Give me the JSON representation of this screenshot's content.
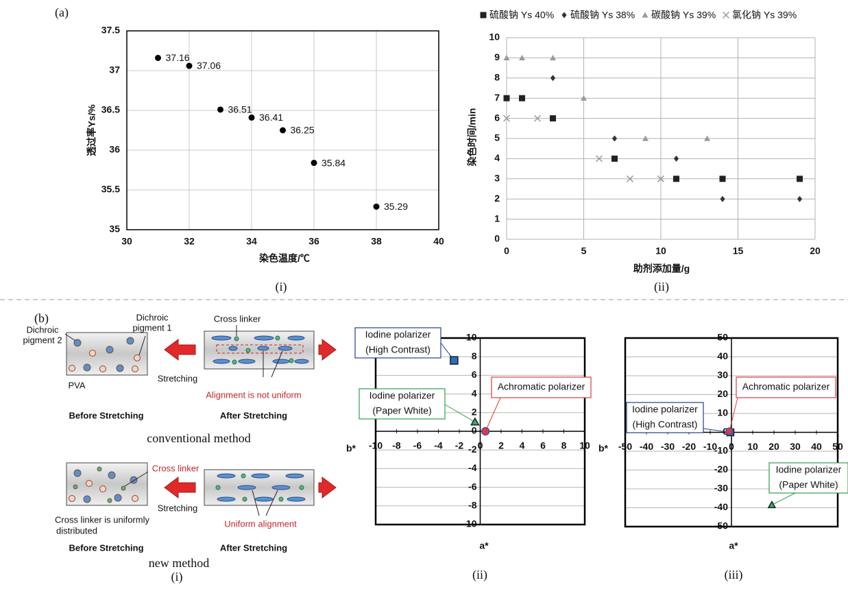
{
  "figure_labels": {
    "a": "(a)",
    "b": "(b)"
  },
  "chart_data": [
    {
      "type": "scatter",
      "panel_label": "(i)",
      "xlabel": "染色温度/℃",
      "ylabel": "透过率Ys/%",
      "x": [
        31,
        32,
        33,
        34,
        35,
        36,
        38
      ],
      "values": [
        37.16,
        37.06,
        36.51,
        36.41,
        36.25,
        35.84,
        35.29
      ],
      "data_labels": true,
      "marker": "circle",
      "color": "#000000",
      "xlim": [
        30,
        40
      ],
      "xticks": [
        30,
        32,
        34,
        36,
        38,
        40
      ],
      "ylim": [
        35,
        37.5
      ],
      "yticks": [
        35,
        35.5,
        36,
        36.5,
        37,
        37.5
      ],
      "grid": true,
      "frame": true
    },
    {
      "type": "scatter",
      "panel_label": "(ii)",
      "xlabel": "助剂添加量/g",
      "ylabel": "染色时间/min",
      "legend": "top",
      "series": [
        {
          "name": "硫酸钠 Ys 40%",
          "marker": "square",
          "color": "#222222",
          "x": [
            0,
            1,
            3,
            7,
            11,
            14,
            19
          ],
          "values": [
            7,
            7,
            6,
            4,
            3,
            3,
            3
          ]
        },
        {
          "name": "硫酸钠 Ys 38%",
          "marker": "diamond",
          "color": "#333333",
          "x": [
            3,
            7,
            11,
            14,
            19
          ],
          "values": [
            8,
            5,
            4,
            2,
            2
          ]
        },
        {
          "name": "碳酸钠 Ys 39%",
          "marker": "triangle",
          "color": "#9a9a9a",
          "x": [
            0,
            1,
            3,
            5,
            9,
            13
          ],
          "values": [
            9,
            9,
            9,
            7,
            5,
            5
          ]
        },
        {
          "name": "氯化钠 Ys 39%",
          "marker": "x",
          "color": "#9a9a9a",
          "x": [
            0,
            2,
            6,
            8,
            10
          ],
          "values": [
            6,
            6,
            4,
            3,
            3
          ]
        }
      ],
      "xlim": [
        0,
        20
      ],
      "xticks": [
        0,
        5,
        10,
        15,
        20
      ],
      "ylim": [
        0,
        10
      ],
      "yticks": [
        0,
        1,
        2,
        3,
        4,
        5,
        6,
        7,
        8,
        9,
        10
      ],
      "grid": true,
      "frame": false
    },
    {
      "type": "scatter",
      "panel_label": "(ii)",
      "xlabel": "a*",
      "ylabel": "b*",
      "axes_through_origin": true,
      "series": [
        {
          "label": [
            "Iodine polarizer",
            "(High Contrast)"
          ],
          "marker": "square",
          "color": "#2f6db3",
          "text_color": "#1f3f8f",
          "x": [
            -2.5
          ],
          "values": [
            7.6
          ]
        },
        {
          "label": [
            "Achromatic polarizer"
          ],
          "marker": "circle",
          "color": "#e03a3a",
          "text_color": "#e03a3a",
          "x": [
            0.5
          ],
          "values": [
            0
          ]
        },
        {
          "label": [
            "Iodine polarizer",
            "(Paper White)"
          ],
          "marker": "triangle",
          "color": "#3fae4f",
          "text_color": "#2e9e48",
          "x": [
            -0.5
          ],
          "values": [
            1
          ]
        }
      ],
      "xlim": [
        -10,
        10
      ],
      "xticks": [
        -10,
        -8,
        -6,
        -4,
        -2,
        0,
        2,
        4,
        6,
        8,
        10
      ],
      "ylim": [
        -10,
        10
      ],
      "yticks": [
        -10,
        -8,
        -6,
        -4,
        -2,
        0,
        2,
        4,
        6,
        8,
        10
      ],
      "grid": "y",
      "frame": true
    },
    {
      "type": "scatter",
      "panel_label": "(iii)",
      "xlabel": "a*",
      "ylabel": "b*",
      "axes_through_origin": true,
      "series": [
        {
          "label": [
            "Iodine polarizer",
            "(High Contrast)"
          ],
          "marker": "square",
          "color": "#2f6db3",
          "text_color": "#1f3f8f",
          "x": [
            -0.5
          ],
          "values": [
            0
          ]
        },
        {
          "label": [
            "Achromatic polarizer"
          ],
          "marker": "circle",
          "color": "#e03a3a",
          "text_color": "#e03a3a",
          "x": [
            -1
          ],
          "values": [
            0.5
          ]
        },
        {
          "label": [
            "Iodine polarizer",
            "(Paper White)"
          ],
          "marker": "triangle",
          "color": "#3fae4f",
          "text_color": "#2e9e48",
          "x": [
            19
          ],
          "values": [
            -38.5
          ]
        }
      ],
      "xlim": [
        -50,
        50
      ],
      "xticks": [
        -50,
        -40,
        -30,
        -20,
        -10,
        0,
        10,
        20,
        30,
        40,
        50
      ],
      "ylim": [
        -50,
        50
      ],
      "yticks": [
        -50,
        -40,
        -30,
        -20,
        -10,
        0,
        10,
        20,
        30,
        40,
        50
      ],
      "grid": "y",
      "frame": true
    }
  ],
  "diagram": {
    "panel_label": "(i)",
    "pigment2": [
      "Dichroic",
      "pigment 2"
    ],
    "pigment1": [
      "Dichroic",
      "pigment 1"
    ],
    "pva": "PVA",
    "before1": "Before Stretching",
    "cross_top": "Cross linker",
    "stretch1": "Stretching",
    "not_uniform": "Alignment is not uniform",
    "after1": "After Stretching",
    "method1": "conventional method",
    "cross_red": "Cross linker",
    "uniform_dist": [
      "Cross linker is uniformly",
      "distributed"
    ],
    "stretch2": "Stretching",
    "uniform": "Uniform alignment",
    "before2": "Before Stretching",
    "after2": "After Stretching",
    "method2": "new method"
  }
}
